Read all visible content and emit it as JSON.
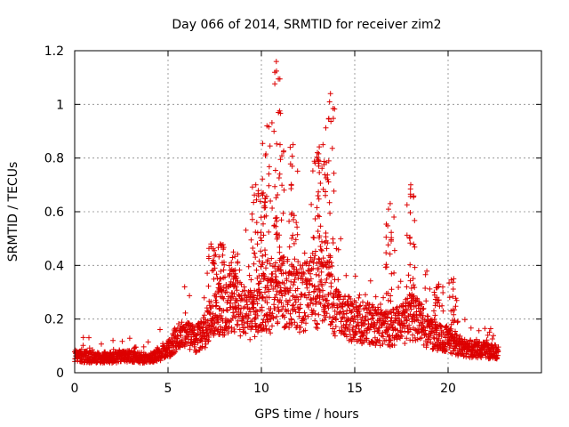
{
  "chart_data": {
    "type": "scatter",
    "title": "Day 066 of 2014, SRMTID for receiver zim2",
    "xlabel": "GPS time / hours",
    "ylabel": "SRMTID / TECUs",
    "xlim": [
      0,
      25
    ],
    "ylim": [
      0,
      1.2
    ],
    "grid": true,
    "marker": "+",
    "color": "#dd0000",
    "xticks": [
      0,
      5,
      10,
      15,
      20
    ],
    "yticks": [
      0,
      0.2,
      0.4,
      0.6,
      0.8,
      1,
      1.2
    ],
    "xtick_labels": [
      "0",
      "5",
      "10",
      "15",
      "20"
    ],
    "ytick_labels": [
      "0",
      "0.2",
      "0.4",
      "0.6",
      "0.8",
      "1",
      "1.2"
    ],
    "series": [
      {
        "name": "SRMTID",
        "baseline": {
          "x": [
            0,
            1,
            2,
            3,
            4,
            5,
            5.5,
            6,
            6.5,
            7,
            7.5,
            8,
            8.5,
            9,
            9.5,
            10,
            10.5,
            11,
            11.5,
            12,
            12.5,
            13,
            13.5,
            14,
            14.5,
            15,
            15.5,
            16,
            16.5,
            17,
            17.5,
            18,
            18.5,
            19,
            19.5,
            20,
            20.5,
            21,
            21.5,
            22,
            22.7
          ],
          "y": [
            0.06,
            0.055,
            0.055,
            0.06,
            0.05,
            0.08,
            0.13,
            0.13,
            0.12,
            0.15,
            0.2,
            0.24,
            0.25,
            0.22,
            0.2,
            0.27,
            0.25,
            0.3,
            0.27,
            0.26,
            0.28,
            0.3,
            0.32,
            0.22,
            0.2,
            0.18,
            0.18,
            0.17,
            0.16,
            0.16,
            0.17,
            0.2,
            0.18,
            0.14,
            0.13,
            0.12,
            0.1,
            0.09,
            0.08,
            0.08,
            0.07
          ]
        },
        "peaks": [
          {
            "x": 7.3,
            "y": 0.48
          },
          {
            "x": 7.8,
            "y": 0.48
          },
          {
            "x": 8.5,
            "y": 0.45
          },
          {
            "x": 9.7,
            "y": 0.7
          },
          {
            "x": 10.1,
            "y": 0.67
          },
          {
            "x": 10.3,
            "y": 0.92
          },
          {
            "x": 10.8,
            "y": 1.16
          },
          {
            "x": 11.0,
            "y": 0.85
          },
          {
            "x": 11.7,
            "y": 0.85
          },
          {
            "x": 13.0,
            "y": 0.82
          },
          {
            "x": 13.3,
            "y": 0.85
          },
          {
            "x": 13.7,
            "y": 1.04
          },
          {
            "x": 16.9,
            "y": 0.63
          },
          {
            "x": 18.0,
            "y": 0.7
          },
          {
            "x": 19.5,
            "y": 0.33
          },
          {
            "x": 20.3,
            "y": 0.35
          }
        ]
      }
    ]
  }
}
